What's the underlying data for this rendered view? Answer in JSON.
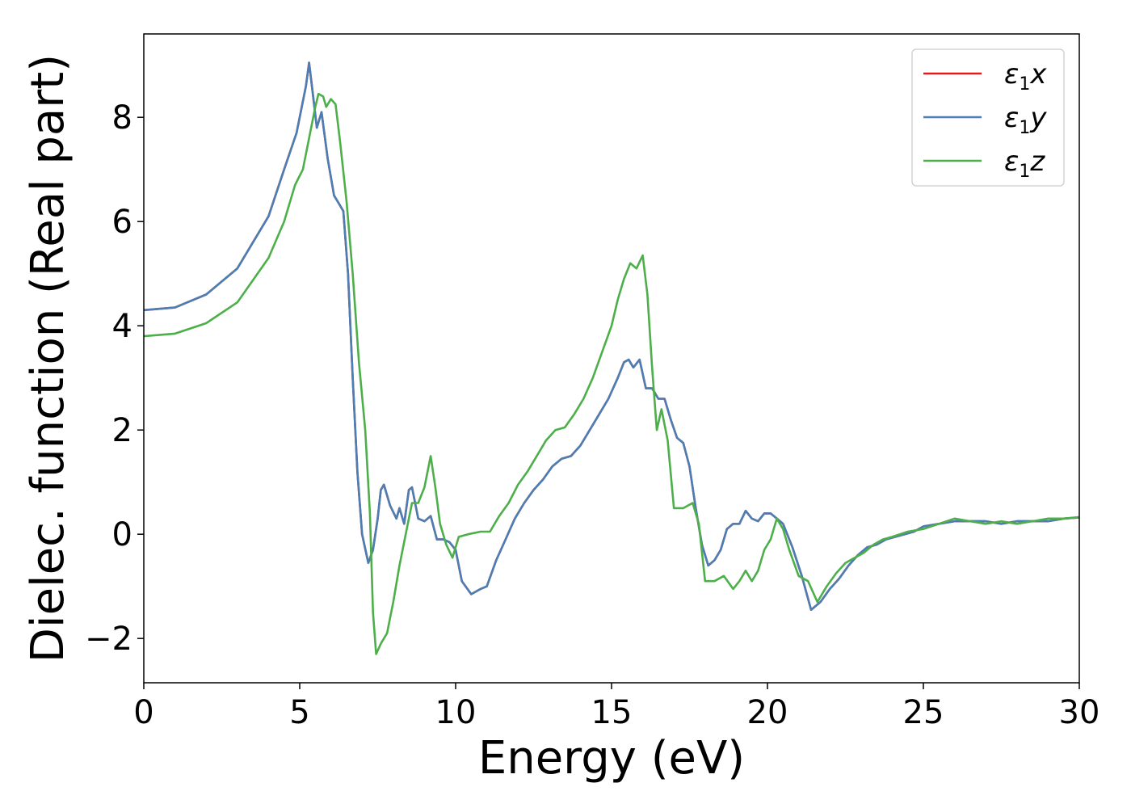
{
  "chart_data": {
    "type": "line",
    "xlabel": "Energy (eV)",
    "ylabel": "Dielec. function (Real part)",
    "xlim": [
      0,
      30
    ],
    "ylim": [
      -2.85,
      9.6
    ],
    "xticks": [
      0,
      5,
      10,
      15,
      20,
      25,
      30
    ],
    "yticks": [
      -2,
      0,
      2,
      4,
      6,
      8
    ],
    "grid": false,
    "legend_position": "top-right",
    "series": [
      {
        "name": "ε1x",
        "legend": {
          "base": "ε",
          "sub": "1",
          "var": "x"
        },
        "color": "#e41a1c",
        "points": [
          [
            0,
            4.3
          ],
          [
            1,
            4.35
          ],
          [
            2,
            4.6
          ],
          [
            3,
            5.1
          ],
          [
            4,
            6.1
          ],
          [
            4.5,
            7.0
          ],
          [
            4.9,
            7.7
          ],
          [
            5.2,
            8.6
          ],
          [
            5.3,
            9.05
          ],
          [
            5.45,
            8.3
          ],
          [
            5.55,
            7.8
          ],
          [
            5.7,
            8.1
          ],
          [
            5.9,
            7.2
          ],
          [
            6.1,
            6.5
          ],
          [
            6.25,
            6.35
          ],
          [
            6.4,
            6.2
          ],
          [
            6.55,
            5.0
          ],
          [
            6.7,
            3.0
          ],
          [
            6.85,
            1.2
          ],
          [
            7.0,
            0.0
          ],
          [
            7.2,
            -0.55
          ],
          [
            7.35,
            -0.3
          ],
          [
            7.5,
            0.3
          ],
          [
            7.6,
            0.85
          ],
          [
            7.7,
            0.95
          ],
          [
            7.9,
            0.55
          ],
          [
            8.1,
            0.3
          ],
          [
            8.2,
            0.5
          ],
          [
            8.35,
            0.2
          ],
          [
            8.5,
            0.85
          ],
          [
            8.6,
            0.9
          ],
          [
            8.8,
            0.3
          ],
          [
            9.0,
            0.25
          ],
          [
            9.2,
            0.35
          ],
          [
            9.4,
            -0.1
          ],
          [
            9.6,
            -0.1
          ],
          [
            9.8,
            -0.15
          ],
          [
            10.0,
            -0.3
          ],
          [
            10.2,
            -0.9
          ],
          [
            10.5,
            -1.15
          ],
          [
            10.8,
            -1.05
          ],
          [
            11.0,
            -1.0
          ],
          [
            11.3,
            -0.5
          ],
          [
            11.6,
            -0.1
          ],
          [
            11.9,
            0.3
          ],
          [
            12.2,
            0.6
          ],
          [
            12.5,
            0.85
          ],
          [
            12.8,
            1.05
          ],
          [
            13.1,
            1.3
          ],
          [
            13.4,
            1.45
          ],
          [
            13.7,
            1.5
          ],
          [
            14.0,
            1.7
          ],
          [
            14.3,
            2.0
          ],
          [
            14.6,
            2.3
          ],
          [
            14.9,
            2.6
          ],
          [
            15.2,
            3.0
          ],
          [
            15.4,
            3.3
          ],
          [
            15.55,
            3.35
          ],
          [
            15.7,
            3.2
          ],
          [
            15.9,
            3.35
          ],
          [
            16.1,
            2.8
          ],
          [
            16.3,
            2.8
          ],
          [
            16.5,
            2.6
          ],
          [
            16.7,
            2.6
          ],
          [
            16.9,
            2.2
          ],
          [
            17.1,
            1.85
          ],
          [
            17.3,
            1.75
          ],
          [
            17.5,
            1.3
          ],
          [
            17.7,
            0.5
          ],
          [
            17.9,
            -0.2
          ],
          [
            18.1,
            -0.6
          ],
          [
            18.3,
            -0.5
          ],
          [
            18.5,
            -0.3
          ],
          [
            18.7,
            0.1
          ],
          [
            18.9,
            0.2
          ],
          [
            19.1,
            0.2
          ],
          [
            19.3,
            0.45
          ],
          [
            19.5,
            0.3
          ],
          [
            19.7,
            0.25
          ],
          [
            19.9,
            0.4
          ],
          [
            20.1,
            0.4
          ],
          [
            20.3,
            0.3
          ],
          [
            20.5,
            0.2
          ],
          [
            20.8,
            -0.25
          ],
          [
            21.1,
            -0.8
          ],
          [
            21.4,
            -1.45
          ],
          [
            21.7,
            -1.3
          ],
          [
            22.0,
            -1.05
          ],
          [
            22.3,
            -0.85
          ],
          [
            22.6,
            -0.6
          ],
          [
            22.9,
            -0.4
          ],
          [
            23.2,
            -0.25
          ],
          [
            23.5,
            -0.2
          ],
          [
            23.8,
            -0.1
          ],
          [
            24.1,
            -0.05
          ],
          [
            24.4,
            0.0
          ],
          [
            24.7,
            0.05
          ],
          [
            25.0,
            0.15
          ],
          [
            25.5,
            0.2
          ],
          [
            26.0,
            0.25
          ],
          [
            26.5,
            0.25
          ],
          [
            27.0,
            0.25
          ],
          [
            27.5,
            0.2
          ],
          [
            28.0,
            0.25
          ],
          [
            28.5,
            0.25
          ],
          [
            29.0,
            0.25
          ],
          [
            29.5,
            0.3
          ],
          [
            30,
            0.32
          ]
        ]
      },
      {
        "name": "ε1y",
        "legend": {
          "base": "ε",
          "sub": "1",
          "var": "y"
        },
        "color": "#4a7fb5",
        "points": [
          [
            0,
            4.3
          ],
          [
            1,
            4.35
          ],
          [
            2,
            4.6
          ],
          [
            3,
            5.1
          ],
          [
            4,
            6.1
          ],
          [
            4.5,
            7.0
          ],
          [
            4.9,
            7.7
          ],
          [
            5.2,
            8.6
          ],
          [
            5.3,
            9.05
          ],
          [
            5.45,
            8.3
          ],
          [
            5.55,
            7.8
          ],
          [
            5.7,
            8.1
          ],
          [
            5.9,
            7.2
          ],
          [
            6.1,
            6.5
          ],
          [
            6.25,
            6.35
          ],
          [
            6.4,
            6.2
          ],
          [
            6.55,
            5.0
          ],
          [
            6.7,
            3.0
          ],
          [
            6.85,
            1.2
          ],
          [
            7.0,
            0.0
          ],
          [
            7.2,
            -0.55
          ],
          [
            7.35,
            -0.3
          ],
          [
            7.5,
            0.3
          ],
          [
            7.6,
            0.85
          ],
          [
            7.7,
            0.95
          ],
          [
            7.9,
            0.55
          ],
          [
            8.1,
            0.3
          ],
          [
            8.2,
            0.5
          ],
          [
            8.35,
            0.2
          ],
          [
            8.5,
            0.85
          ],
          [
            8.6,
            0.9
          ],
          [
            8.8,
            0.3
          ],
          [
            9.0,
            0.25
          ],
          [
            9.2,
            0.35
          ],
          [
            9.4,
            -0.1
          ],
          [
            9.6,
            -0.1
          ],
          [
            9.8,
            -0.15
          ],
          [
            10.0,
            -0.3
          ],
          [
            10.2,
            -0.9
          ],
          [
            10.5,
            -1.15
          ],
          [
            10.8,
            -1.05
          ],
          [
            11.0,
            -1.0
          ],
          [
            11.3,
            -0.5
          ],
          [
            11.6,
            -0.1
          ],
          [
            11.9,
            0.3
          ],
          [
            12.2,
            0.6
          ],
          [
            12.5,
            0.85
          ],
          [
            12.8,
            1.05
          ],
          [
            13.1,
            1.3
          ],
          [
            13.4,
            1.45
          ],
          [
            13.7,
            1.5
          ],
          [
            14.0,
            1.7
          ],
          [
            14.3,
            2.0
          ],
          [
            14.6,
            2.3
          ],
          [
            14.9,
            2.6
          ],
          [
            15.2,
            3.0
          ],
          [
            15.4,
            3.3
          ],
          [
            15.55,
            3.35
          ],
          [
            15.7,
            3.2
          ],
          [
            15.9,
            3.35
          ],
          [
            16.1,
            2.8
          ],
          [
            16.3,
            2.8
          ],
          [
            16.5,
            2.6
          ],
          [
            16.7,
            2.6
          ],
          [
            16.9,
            2.2
          ],
          [
            17.1,
            1.85
          ],
          [
            17.3,
            1.75
          ],
          [
            17.5,
            1.3
          ],
          [
            17.7,
            0.5
          ],
          [
            17.9,
            -0.2
          ],
          [
            18.1,
            -0.6
          ],
          [
            18.3,
            -0.5
          ],
          [
            18.5,
            -0.3
          ],
          [
            18.7,
            0.1
          ],
          [
            18.9,
            0.2
          ],
          [
            19.1,
            0.2
          ],
          [
            19.3,
            0.45
          ],
          [
            19.5,
            0.3
          ],
          [
            19.7,
            0.25
          ],
          [
            19.9,
            0.4
          ],
          [
            20.1,
            0.4
          ],
          [
            20.3,
            0.3
          ],
          [
            20.5,
            0.2
          ],
          [
            20.8,
            -0.25
          ],
          [
            21.1,
            -0.8
          ],
          [
            21.4,
            -1.45
          ],
          [
            21.7,
            -1.3
          ],
          [
            22.0,
            -1.05
          ],
          [
            22.3,
            -0.85
          ],
          [
            22.6,
            -0.6
          ],
          [
            22.9,
            -0.4
          ],
          [
            23.2,
            -0.25
          ],
          [
            23.5,
            -0.2
          ],
          [
            23.8,
            -0.1
          ],
          [
            24.1,
            -0.05
          ],
          [
            24.4,
            0.0
          ],
          [
            24.7,
            0.05
          ],
          [
            25.0,
            0.15
          ],
          [
            25.5,
            0.2
          ],
          [
            26.0,
            0.25
          ],
          [
            26.5,
            0.25
          ],
          [
            27.0,
            0.25
          ],
          [
            27.5,
            0.2
          ],
          [
            28.0,
            0.25
          ],
          [
            28.5,
            0.25
          ],
          [
            29.0,
            0.25
          ],
          [
            29.5,
            0.3
          ],
          [
            30,
            0.32
          ]
        ]
      },
      {
        "name": "ε1z",
        "legend": {
          "base": "ε",
          "sub": "1",
          "var": "z"
        },
        "color": "#4daf4a",
        "points": [
          [
            0,
            3.8
          ],
          [
            1,
            3.85
          ],
          [
            2,
            4.05
          ],
          [
            3,
            4.45
          ],
          [
            4,
            5.3
          ],
          [
            4.5,
            6.0
          ],
          [
            4.85,
            6.7
          ],
          [
            5.1,
            7.0
          ],
          [
            5.3,
            7.6
          ],
          [
            5.5,
            8.2
          ],
          [
            5.6,
            8.45
          ],
          [
            5.75,
            8.4
          ],
          [
            5.85,
            8.2
          ],
          [
            6.0,
            8.35
          ],
          [
            6.15,
            8.25
          ],
          [
            6.3,
            7.5
          ],
          [
            6.5,
            6.4
          ],
          [
            6.7,
            5.0
          ],
          [
            6.9,
            3.3
          ],
          [
            7.1,
            2.0
          ],
          [
            7.25,
            0.4
          ],
          [
            7.35,
            -1.5
          ],
          [
            7.45,
            -2.3
          ],
          [
            7.6,
            -2.1
          ],
          [
            7.8,
            -1.9
          ],
          [
            8.0,
            -1.3
          ],
          [
            8.2,
            -0.6
          ],
          [
            8.4,
            0.0
          ],
          [
            8.6,
            0.6
          ],
          [
            8.8,
            0.6
          ],
          [
            9.0,
            0.9
          ],
          [
            9.2,
            1.5
          ],
          [
            9.35,
            0.9
          ],
          [
            9.5,
            0.2
          ],
          [
            9.7,
            -0.2
          ],
          [
            9.9,
            -0.45
          ],
          [
            10.1,
            -0.05
          ],
          [
            10.4,
            0.0
          ],
          [
            10.8,
            0.05
          ],
          [
            11.1,
            0.05
          ],
          [
            11.4,
            0.35
          ],
          [
            11.7,
            0.6
          ],
          [
            12.0,
            0.95
          ],
          [
            12.3,
            1.2
          ],
          [
            12.6,
            1.5
          ],
          [
            12.9,
            1.8
          ],
          [
            13.2,
            2.0
          ],
          [
            13.5,
            2.05
          ],
          [
            13.8,
            2.3
          ],
          [
            14.1,
            2.6
          ],
          [
            14.4,
            3.0
          ],
          [
            14.7,
            3.5
          ],
          [
            15.0,
            4.0
          ],
          [
            15.2,
            4.5
          ],
          [
            15.4,
            4.9
          ],
          [
            15.6,
            5.2
          ],
          [
            15.8,
            5.1
          ],
          [
            16.0,
            5.35
          ],
          [
            16.15,
            4.6
          ],
          [
            16.3,
            3.2
          ],
          [
            16.45,
            2.0
          ],
          [
            16.6,
            2.4
          ],
          [
            16.8,
            1.8
          ],
          [
            17.0,
            0.5
          ],
          [
            17.3,
            0.5
          ],
          [
            17.6,
            0.6
          ],
          [
            17.8,
            0.2
          ],
          [
            18.0,
            -0.9
          ],
          [
            18.3,
            -0.9
          ],
          [
            18.6,
            -0.8
          ],
          [
            18.9,
            -1.05
          ],
          [
            19.1,
            -0.9
          ],
          [
            19.3,
            -0.7
          ],
          [
            19.5,
            -0.9
          ],
          [
            19.7,
            -0.7
          ],
          [
            19.9,
            -0.3
          ],
          [
            20.1,
            -0.1
          ],
          [
            20.3,
            0.3
          ],
          [
            20.5,
            0.1
          ],
          [
            20.7,
            -0.3
          ],
          [
            21.0,
            -0.8
          ],
          [
            21.3,
            -0.9
          ],
          [
            21.6,
            -1.3
          ],
          [
            21.9,
            -1.0
          ],
          [
            22.2,
            -0.75
          ],
          [
            22.5,
            -0.55
          ],
          [
            22.8,
            -0.45
          ],
          [
            23.1,
            -0.35
          ],
          [
            23.4,
            -0.2
          ],
          [
            23.7,
            -0.1
          ],
          [
            24.0,
            -0.05
          ],
          [
            24.5,
            0.05
          ],
          [
            25.0,
            0.1
          ],
          [
            25.5,
            0.2
          ],
          [
            26.0,
            0.3
          ],
          [
            26.5,
            0.25
          ],
          [
            27.0,
            0.2
          ],
          [
            27.5,
            0.25
          ],
          [
            28.0,
            0.2
          ],
          [
            28.5,
            0.25
          ],
          [
            29.0,
            0.3
          ],
          [
            29.5,
            0.3
          ],
          [
            30,
            0.33
          ]
        ]
      }
    ]
  }
}
